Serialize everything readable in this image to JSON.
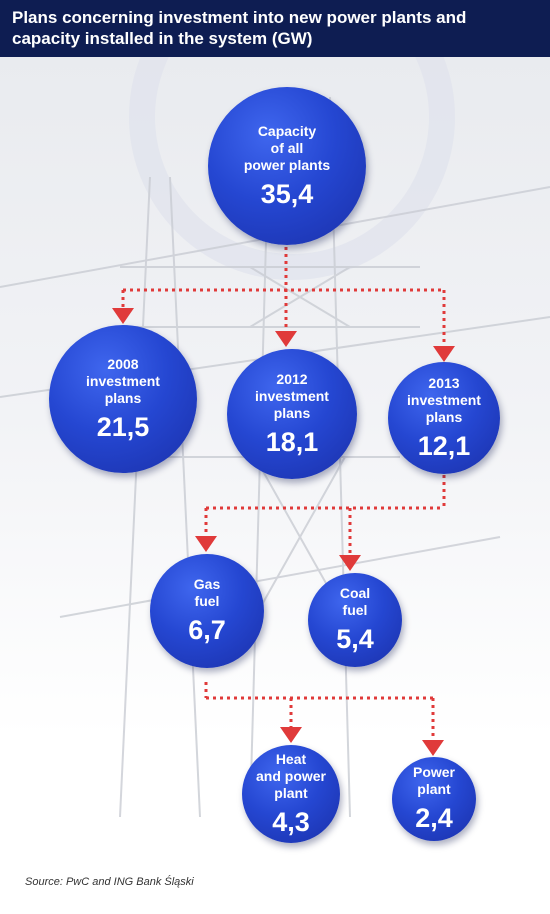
{
  "header": {
    "title": "Plans concerning investment into new power plants and capacity installed in the system (GW)"
  },
  "nodes": {
    "total": {
      "label": "Capacity\nof all\npower plants",
      "value": "35,4"
    },
    "plan2008": {
      "label": "2008\ninvestment\nplans",
      "value": "21,5"
    },
    "plan2012": {
      "label": "2012\ninvestment\nplans",
      "value": "18,1"
    },
    "plan2013": {
      "label": "2013\ninvestment\nplans",
      "value": "12,1"
    },
    "gas": {
      "label": "Gas\nfuel",
      "value": "6,7"
    },
    "coal": {
      "label": "Coal\nfuel",
      "value": "5,4"
    },
    "heat": {
      "label": "Heat\nand power\nplant",
      "value": "4,3"
    },
    "power": {
      "label": "Power\nplant",
      "value": "2,4"
    }
  },
  "source": "Source: PwC and ING Bank Śląski",
  "colors": {
    "header_bg": "#0e1d52",
    "node_blue": "#2547d2",
    "connector_red": "#e03a3a"
  }
}
